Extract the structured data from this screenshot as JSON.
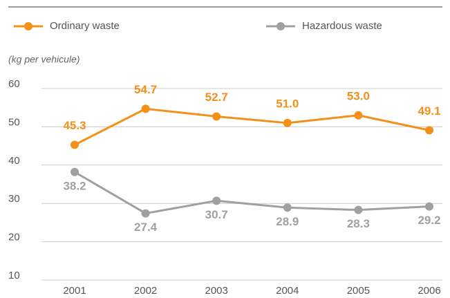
{
  "chart_data": {
    "type": "line",
    "y_axis_label": "(kg per vehicule)",
    "categories": [
      "2001",
      "2002",
      "2003",
      "2004",
      "2005",
      "2006"
    ],
    "series": [
      {
        "name": "Ordinary waste",
        "color": "#f39019",
        "values": [
          45.3,
          54.7,
          52.7,
          51.0,
          53.0,
          49.1
        ],
        "value_labels": [
          "45.3",
          "54.7",
          "52.7",
          "51.0",
          "53.0",
          "49.1"
        ]
      },
      {
        "name": "Hazardous waste",
        "color": "#a0a0a0",
        "values": [
          38.2,
          27.4,
          30.7,
          28.9,
          28.3,
          29.2
        ],
        "value_labels": [
          "38.2",
          "27.4",
          "30.7",
          "28.9",
          "28.3",
          "29.2"
        ]
      }
    ],
    "ylim": [
      10,
      60
    ],
    "yticks": [
      10,
      20,
      30,
      40,
      50,
      60
    ],
    "grid": true,
    "legend": "top"
  }
}
